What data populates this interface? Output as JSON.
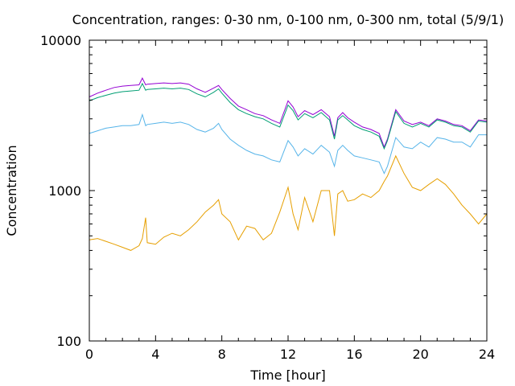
{
  "chart_data": {
    "type": "line",
    "title": "Concentration, ranges: 0-30 nm, 0-100 nm, 0-300 nm, total (5/9/1)",
    "xlabel": "Time [hour]",
    "ylabel": "Concentration",
    "xlim": [
      0,
      24
    ],
    "ylim": [
      100,
      10000
    ],
    "yscale": "log",
    "grid": false,
    "legend": "none",
    "x_ticks": [
      0,
      4,
      8,
      12,
      16,
      20,
      24
    ],
    "y_ticks": [
      100,
      1000,
      10000
    ],
    "x_tick_labels": [
      "0",
      "4",
      "8",
      "12",
      "16",
      "20",
      "24"
    ],
    "y_tick_labels": [
      "100",
      "1000",
      "10000"
    ],
    "series": [
      {
        "color": "#9400d3",
        "x": [
          0,
          0.5,
          1,
          1.5,
          2,
          2.5,
          3,
          3.2,
          3.4,
          3.5,
          4,
          4.5,
          5,
          5.5,
          6,
          6.5,
          7,
          7.5,
          7.8,
          8,
          8.5,
          9,
          9.5,
          10,
          10.5,
          11,
          11.5,
          12,
          12.3,
          12.6,
          13,
          13.5,
          14,
          14.5,
          14.8,
          15,
          15.3,
          15.6,
          16,
          16.5,
          17,
          17.5,
          17.8,
          18,
          18.5,
          19,
          19.5,
          20,
          20.5,
          21,
          21.5,
          22,
          22.5,
          23,
          23.5,
          24
        ],
        "y": [
          4200,
          4450,
          4650,
          4850,
          4950,
          5000,
          5050,
          5600,
          5050,
          5100,
          5150,
          5200,
          5150,
          5200,
          5100,
          4750,
          4500,
          4800,
          5000,
          4700,
          4100,
          3650,
          3450,
          3250,
          3150,
          2950,
          2800,
          3950,
          3600,
          3100,
          3400,
          3200,
          3450,
          3100,
          2300,
          3050,
          3300,
          3050,
          2850,
          2650,
          2550,
          2400,
          1950,
          2200,
          3450,
          2900,
          2750,
          2850,
          2700,
          3000,
          2900,
          2750,
          2700,
          2500,
          2950,
          2900
        ]
      },
      {
        "color": "#009e73",
        "x": [
          0,
          0.5,
          1,
          1.5,
          2,
          2.5,
          3,
          3.2,
          3.4,
          3.5,
          4,
          4.5,
          5,
          5.5,
          6,
          6.5,
          7,
          7.5,
          7.8,
          8,
          8.5,
          9,
          9.5,
          10,
          10.5,
          11,
          11.5,
          12,
          12.3,
          12.6,
          13,
          13.5,
          14,
          14.5,
          14.8,
          15,
          15.3,
          15.6,
          16,
          16.5,
          17,
          17.5,
          17.8,
          18,
          18.5,
          19,
          19.5,
          20,
          20.5,
          21,
          21.5,
          22,
          22.5,
          23,
          23.5,
          24
        ],
        "y": [
          3950,
          4150,
          4300,
          4450,
          4550,
          4600,
          4650,
          5150,
          4650,
          4700,
          4750,
          4800,
          4750,
          4800,
          4700,
          4400,
          4200,
          4500,
          4750,
          4450,
          3850,
          3450,
          3250,
          3100,
          3000,
          2800,
          2650,
          3700,
          3400,
          2950,
          3250,
          3050,
          3300,
          2950,
          2200,
          2950,
          3150,
          2950,
          2700,
          2550,
          2450,
          2300,
          1900,
          2150,
          3350,
          2800,
          2650,
          2800,
          2650,
          2950,
          2850,
          2700,
          2650,
          2450,
          2900,
          2850
        ]
      },
      {
        "color": "#56b4e9",
        "x": [
          0,
          0.5,
          1,
          1.5,
          2,
          2.5,
          3,
          3.2,
          3.4,
          3.5,
          4,
          4.5,
          5,
          5.5,
          6,
          6.5,
          7,
          7.5,
          7.8,
          8,
          8.5,
          9,
          9.5,
          10,
          10.5,
          11,
          11.5,
          12,
          12.3,
          12.6,
          13,
          13.5,
          14,
          14.5,
          14.8,
          15,
          15.3,
          15.6,
          16,
          16.5,
          17,
          17.5,
          17.8,
          18,
          18.5,
          19,
          19.5,
          20,
          20.5,
          21,
          21.5,
          22,
          22.5,
          23,
          23.5,
          24
        ],
        "y": [
          2400,
          2500,
          2600,
          2650,
          2700,
          2700,
          2750,
          3200,
          2700,
          2750,
          2800,
          2850,
          2800,
          2850,
          2750,
          2550,
          2450,
          2600,
          2800,
          2550,
          2200,
          2000,
          1850,
          1750,
          1700,
          1600,
          1550,
          2150,
          1950,
          1700,
          1900,
          1750,
          2000,
          1800,
          1450,
          1850,
          2000,
          1850,
          1700,
          1650,
          1600,
          1550,
          1300,
          1450,
          2250,
          1950,
          1900,
          2100,
          1950,
          2250,
          2200,
          2100,
          2100,
          1950,
          2350,
          2350
        ]
      },
      {
        "color": "#e69f00",
        "x": [
          0,
          0.5,
          1,
          1.5,
          2,
          2.5,
          3,
          3.2,
          3.4,
          3.5,
          4,
          4.5,
          5,
          5.5,
          6,
          6.5,
          7,
          7.5,
          7.8,
          8,
          8.5,
          9,
          9.5,
          10,
          10.5,
          11,
          11.5,
          12,
          12.3,
          12.6,
          13,
          13.5,
          14,
          14.5,
          14.8,
          15,
          15.3,
          15.6,
          16,
          16.5,
          17,
          17.5,
          17.8,
          18,
          18.5,
          19,
          19.5,
          20,
          20.5,
          21,
          21.5,
          22,
          22.5,
          23,
          23.5,
          24
        ],
        "y": [
          470,
          480,
          460,
          440,
          420,
          400,
          430,
          480,
          660,
          450,
          440,
          490,
          520,
          500,
          550,
          620,
          720,
          800,
          870,
          700,
          620,
          470,
          580,
          560,
          470,
          520,
          720,
          1050,
          700,
          550,
          900,
          620,
          1000,
          1000,
          500,
          950,
          1000,
          850,
          870,
          950,
          900,
          1000,
          1150,
          1250,
          1700,
          1300,
          1050,
          1000,
          1100,
          1200,
          1100,
          950,
          800,
          700,
          600,
          700
        ]
      }
    ]
  }
}
